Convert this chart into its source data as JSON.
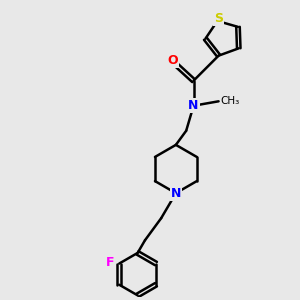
{
  "background_color": "#e8e8e8",
  "bond_color": "#000000",
  "S_color": "#cccc00",
  "O_color": "#ff0000",
  "N_color": "#0000ff",
  "F_color": "#ff00ff",
  "bond_width": 1.8,
  "fig_width": 3.0,
  "fig_height": 3.0,
  "dpi": 100,
  "xlim": [
    0,
    10
  ],
  "ylim": [
    0,
    10
  ]
}
